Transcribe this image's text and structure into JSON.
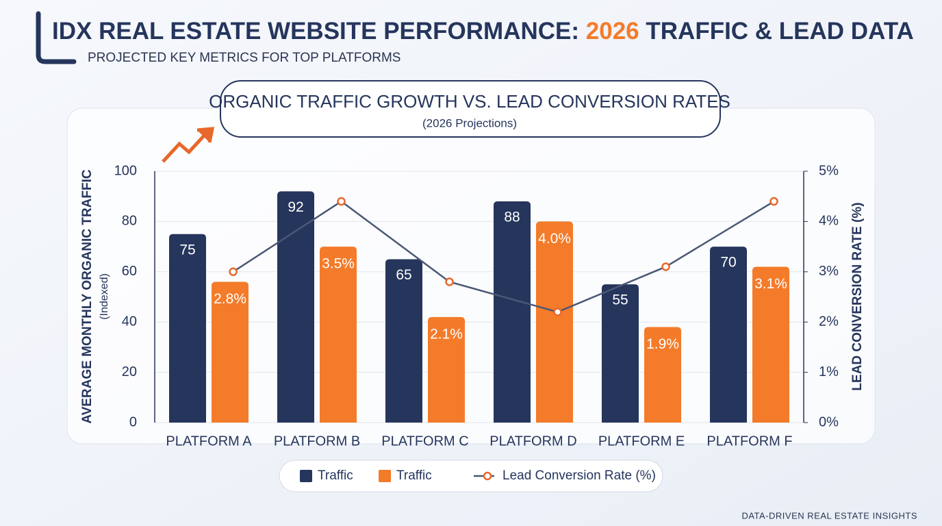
{
  "header": {
    "title_prefix": "IDX REAL ESTATE WEBSITE PERFORMANCE:",
    "title_highlight": "2026",
    "title_suffix": "TRAFFIC & LEAD DATA",
    "subtitle": "PROJECTED KEY METRICS FOR TOP PLATFORMS"
  },
  "footer": "DATA-DRIVEN REAL ESTATE INSIGHTS",
  "chart_data": {
    "type": "bar",
    "title": "ORGANIC TRAFFIC GROWTH VS. LEAD CONVERSION RATES",
    "subtitle": "(2026 Projections)",
    "y_label": "AVERAGE MONTHLY ORGANIC TRAFFIC",
    "y_label_note": "(Indexed)",
    "y2_label": "LEAD CONVERSION RATE (%)",
    "categories": [
      "PLATFORM A",
      "PLATFORM B",
      "PLATFORM C",
      "PLATFORM D",
      "PLATFORM E",
      "PLATFORM F"
    ],
    "series": [
      {
        "name": "Traffic",
        "color": "#25355c",
        "values": [
          75,
          92,
          65,
          88,
          55,
          70
        ]
      },
      {
        "name": "Traffic",
        "color": "#f47b2a",
        "axis": "y2",
        "values": [
          2.8,
          3.5,
          2.1,
          4.0,
          1.9,
          3.1
        ],
        "value_labels": [
          "2.8%",
          "3.5%",
          "2.1%",
          "4.0%",
          "1.9%",
          "3.1%"
        ]
      },
      {
        "name": "Lead Conversion Rate (%)",
        "type": "line",
        "color": "#4a5876",
        "marker_color": "#e8672a",
        "axis": "y2",
        "values": [
          3.0,
          4.4,
          2.8,
          2.2,
          3.1,
          4.4
        ]
      }
    ],
    "ylim": [
      0,
      100
    ],
    "yticks": [
      0,
      20,
      40,
      60,
      80,
      100
    ],
    "y2lim": [
      0,
      5
    ],
    "y2ticks": [
      {
        "value": 0,
        "label": "0%"
      },
      {
        "value": 1,
        "label": "1%"
      },
      {
        "value": 2,
        "label": "2%"
      },
      {
        "value": 3,
        "label": "3%"
      },
      {
        "value": 4,
        "label": "4%"
      },
      {
        "value": 5,
        "label": "5%"
      }
    ],
    "grid": true,
    "legend": "bottom"
  }
}
